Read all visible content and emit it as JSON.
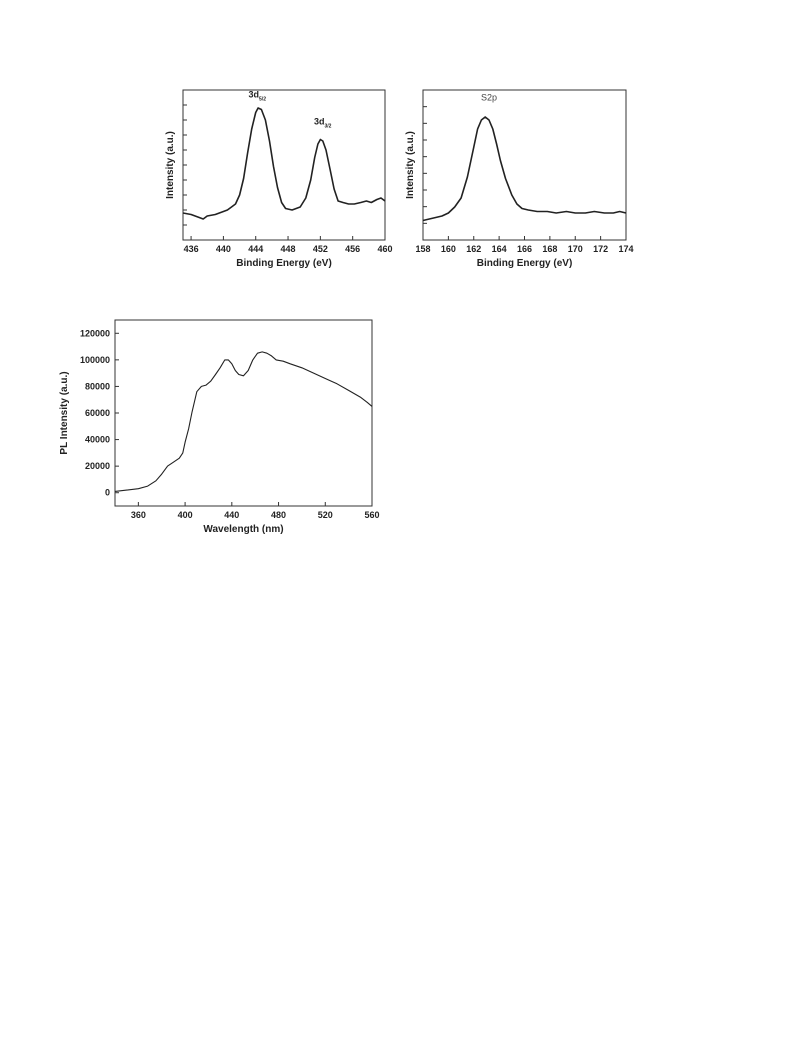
{
  "chart_data": [
    {
      "type": "line",
      "xlabel": "Binding Energy (eV)",
      "ylabel": "Intensity (a.u.)",
      "xlim": [
        435,
        460
      ],
      "ylim": [
        0,
        1
      ],
      "x_ticks": [
        "436",
        "440",
        "444",
        "448",
        "452",
        "456",
        "460"
      ],
      "y_ticks": [],
      "minor_y_ticks": 9,
      "annotations": [
        {
          "main": "3d",
          "sub": "5/2",
          "x": 444.1,
          "y": 0.95
        },
        {
          "main": "3d",
          "sub": "3/2",
          "x": 452.2,
          "y": 0.77
        }
      ],
      "series": [
        {
          "x": [
            435,
            436,
            437,
            437.5,
            438,
            439,
            440,
            440.5,
            441,
            441.5,
            442,
            442.5,
            443,
            443.5,
            444,
            444.3,
            444.7,
            445.2,
            445.7,
            446.2,
            446.7,
            447.2,
            447.7,
            448.5,
            449.5,
            450.2,
            450.8,
            451.3,
            451.7,
            452,
            452.3,
            452.7,
            453.2,
            453.7,
            454.2,
            454.8,
            455.5,
            456.2,
            457,
            457.7,
            458.3,
            459,
            459.5,
            460
          ],
          "values": [
            0.18,
            0.17,
            0.15,
            0.14,
            0.16,
            0.17,
            0.19,
            0.2,
            0.22,
            0.24,
            0.3,
            0.41,
            0.58,
            0.74,
            0.85,
            0.88,
            0.87,
            0.8,
            0.66,
            0.49,
            0.35,
            0.25,
            0.21,
            0.2,
            0.22,
            0.28,
            0.4,
            0.55,
            0.64,
            0.67,
            0.66,
            0.6,
            0.47,
            0.34,
            0.26,
            0.25,
            0.24,
            0.24,
            0.25,
            0.26,
            0.25,
            0.27,
            0.28,
            0.26
          ]
        }
      ]
    },
    {
      "type": "line",
      "xlabel": "Binding Energy (eV)",
      "ylabel": "Intensity (a.u.)",
      "xlim": [
        158,
        174
      ],
      "ylim": [
        0,
        1
      ],
      "x_ticks": [
        "158",
        "160",
        "162",
        "164",
        "166",
        "168",
        "170",
        "172",
        "174"
      ],
      "y_ticks": [],
      "minor_y_ticks": 8,
      "annotations": [
        {
          "main": "S2p",
          "x": 163.2,
          "y": 0.93
        }
      ],
      "series": [
        {
          "x": [
            158,
            158.5,
            159,
            159.5,
            160,
            160.5,
            161,
            161.5,
            162,
            162.3,
            162.6,
            162.9,
            163.2,
            163.5,
            163.8,
            164.1,
            164.5,
            165,
            165.4,
            165.8,
            166.3,
            167,
            167.8,
            168.5,
            169.3,
            170,
            170.8,
            171.5,
            172.3,
            173,
            173.5,
            174
          ],
          "values": [
            0.13,
            0.14,
            0.15,
            0.16,
            0.18,
            0.22,
            0.28,
            0.42,
            0.62,
            0.74,
            0.8,
            0.82,
            0.8,
            0.74,
            0.64,
            0.53,
            0.41,
            0.3,
            0.24,
            0.21,
            0.2,
            0.19,
            0.19,
            0.18,
            0.19,
            0.18,
            0.18,
            0.19,
            0.18,
            0.18,
            0.19,
            0.18
          ]
        }
      ]
    },
    {
      "type": "line",
      "xlabel": "Wavelength (nm)",
      "ylabel": "PL Intensity (a.u.)",
      "xlim": [
        340,
        560
      ],
      "ylim": [
        -10000,
        130000
      ],
      "x_ticks": [
        "360",
        "400",
        "440",
        "480",
        "520",
        "560"
      ],
      "y_ticks": [
        "0",
        "20000",
        "40000",
        "60000",
        "80000",
        "100000",
        "120000"
      ],
      "series": [
        {
          "x": [
            340,
            350,
            360,
            368,
            375,
            380,
            385,
            390,
            395,
            398,
            400,
            403,
            406,
            410,
            414,
            418,
            422,
            426,
            430,
            434,
            437,
            440,
            443,
            446,
            450,
            454,
            458,
            462,
            466,
            470,
            474,
            478,
            484,
            490,
            500,
            510,
            520,
            530,
            540,
            550,
            556,
            560
          ],
          "values": [
            1000,
            2000,
            3000,
            5000,
            9000,
            14000,
            20000,
            23000,
            26000,
            30000,
            38000,
            48000,
            61000,
            76000,
            80000,
            81000,
            84000,
            89000,
            94000,
            100000,
            100000,
            97000,
            92000,
            89000,
            88000,
            92000,
            100000,
            105000,
            106000,
            105000,
            103000,
            100000,
            99000,
            97000,
            94000,
            90000,
            86000,
            82000,
            77000,
            72000,
            68000,
            65000
          ]
        }
      ]
    }
  ]
}
